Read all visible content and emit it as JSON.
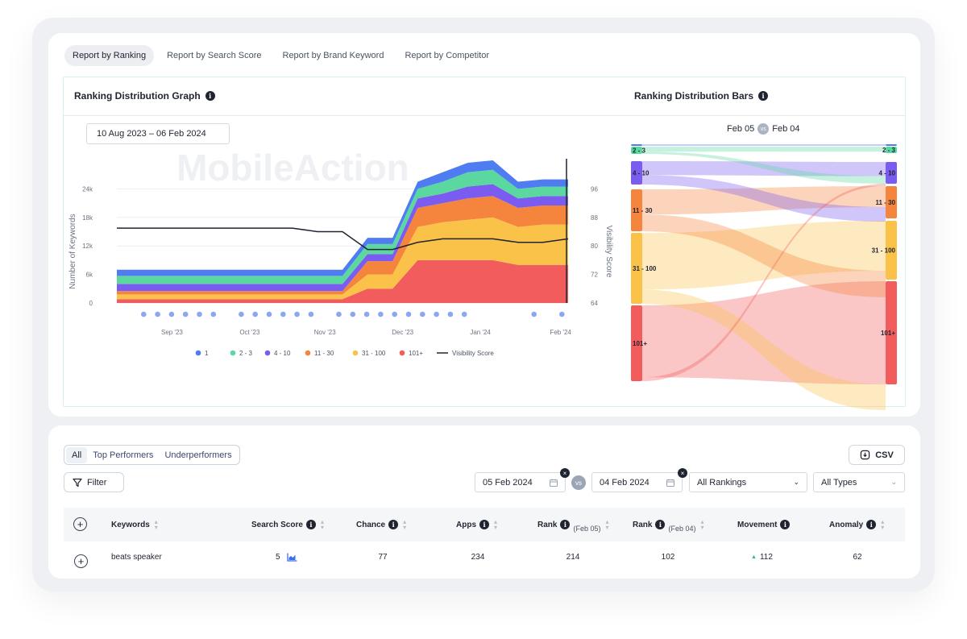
{
  "tabs": [
    "Report by Ranking",
    "Report by Search Score",
    "Report by Brand Keyword",
    "Report by Competitor"
  ],
  "graph": {
    "title": "Ranking Distribution Graph",
    "date_range": "10 Aug 2023 – 06 Feb 2024",
    "watermark": "MobileAction"
  },
  "bars": {
    "title": "Ranking Distribution Bars",
    "date_left": "Feb 05",
    "vs": "vs",
    "date_right": "Feb 04",
    "left_labels": [
      "2 - 3",
      "4 - 10",
      "11 - 30",
      "31 - 100",
      "101+"
    ],
    "right_labels": [
      "2 - 3",
      "4 - 10",
      "11 - 30",
      "31 - 100",
      "101+"
    ]
  },
  "colors": {
    "r1": "#4f7cf0",
    "r2_3": "#5ad8a0",
    "r4_10": "#7b5cf0",
    "r11_30": "#f5843d",
    "r31_100": "#fbc24a",
    "r101": "#f25c5c",
    "visibility": "#1f2430"
  },
  "chart_data": {
    "type": "area",
    "title": "Ranking Distribution Graph",
    "xlabel": "",
    "ylabel": "Number of Keywords",
    "y2label": "Visibility Score",
    "ylim": [
      0,
      30000
    ],
    "y2lim": [
      64,
      104
    ],
    "y_ticks": [
      "0",
      "6k",
      "12k",
      "18k",
      "24k"
    ],
    "y2_ticks": [
      "64",
      "72",
      "80",
      "88",
      "96"
    ],
    "x_ticks": [
      "Sep '23",
      "Oct '23",
      "Nov '23",
      "Dec '23",
      "Jan '24",
      "Feb '24"
    ],
    "x": [
      "Aug 10",
      "Aug 20",
      "Aug 30",
      "Sep 10",
      "Sep 20",
      "Sep 30",
      "Oct 10",
      "Oct 20",
      "Oct 30",
      "Nov 10",
      "Nov 20",
      "Nov 30",
      "Dec 10",
      "Dec 20",
      "Dec 30",
      "Jan 10",
      "Jan 20",
      "Jan 30",
      "Feb 06"
    ],
    "series": [
      {
        "name": "101+",
        "values": [
          800,
          800,
          800,
          800,
          800,
          800,
          800,
          800,
          800,
          800,
          3000,
          3000,
          9000,
          9000,
          9000,
          9000,
          8000,
          8000,
          8000
        ]
      },
      {
        "name": "31 - 100",
        "values": [
          1000,
          1000,
          1000,
          1000,
          1000,
          1000,
          1000,
          1000,
          1000,
          1000,
          3000,
          3000,
          7000,
          8000,
          8500,
          9000,
          8000,
          8500,
          8500
        ]
      },
      {
        "name": "11 - 30",
        "values": [
          700,
          700,
          700,
          700,
          700,
          700,
          700,
          700,
          700,
          700,
          2800,
          2800,
          4000,
          4000,
          4500,
          4500,
          4000,
          4000,
          4000
        ]
      },
      {
        "name": "4 - 10",
        "values": [
          1500,
          1500,
          1500,
          1500,
          1500,
          1500,
          1500,
          1500,
          1500,
          1500,
          1500,
          1500,
          2000,
          2000,
          2500,
          2500,
          2000,
          2000,
          2000
        ]
      },
      {
        "name": "2 - 3",
        "values": [
          1700,
          1700,
          1700,
          1700,
          1700,
          1700,
          1700,
          1700,
          1700,
          1700,
          2100,
          2100,
          2000,
          2500,
          3000,
          3000,
          2000,
          2000,
          2000
        ]
      },
      {
        "name": "1",
        "values": [
          1300,
          1300,
          1300,
          1300,
          1300,
          1300,
          1300,
          1300,
          1300,
          1300,
          1300,
          1300,
          1500,
          2000,
          2000,
          2000,
          1500,
          1500,
          1500
        ]
      }
    ],
    "visibility_score": [
      85,
      85,
      85,
      85,
      85,
      85,
      85,
      85,
      84,
      84,
      79,
      79,
      81,
      82,
      82,
      82,
      81,
      81,
      82
    ],
    "legend": [
      "1",
      "2 - 3",
      "4 - 10",
      "11 - 30",
      "31 - 100",
      "101+",
      "Visibility Score"
    ],
    "legend_position": "bottom"
  },
  "filters": {
    "segments": [
      "All",
      "Top Performers",
      "Underperformers"
    ],
    "csv": "CSV",
    "filter": "Filter",
    "date_a": "05 Feb 2024",
    "vs": "vs",
    "date_b": "04 Feb 2024",
    "rankings": "All Rankings",
    "types": "All Types"
  },
  "table": {
    "headers": {
      "keywords": "Keywords",
      "search_score": "Search Score",
      "chance": "Chance",
      "apps": "Apps",
      "rank": "Rank",
      "rank_a_date": "(Feb 05)",
      "rank_b_date": "(Feb 04)",
      "movement": "Movement",
      "anomaly": "Anomaly"
    },
    "row": {
      "keyword": "beats speaker",
      "search_score": "5",
      "chance": "77",
      "apps": "234",
      "rank_a": "214",
      "rank_b": "102",
      "movement": "112",
      "anomaly": "62"
    }
  }
}
